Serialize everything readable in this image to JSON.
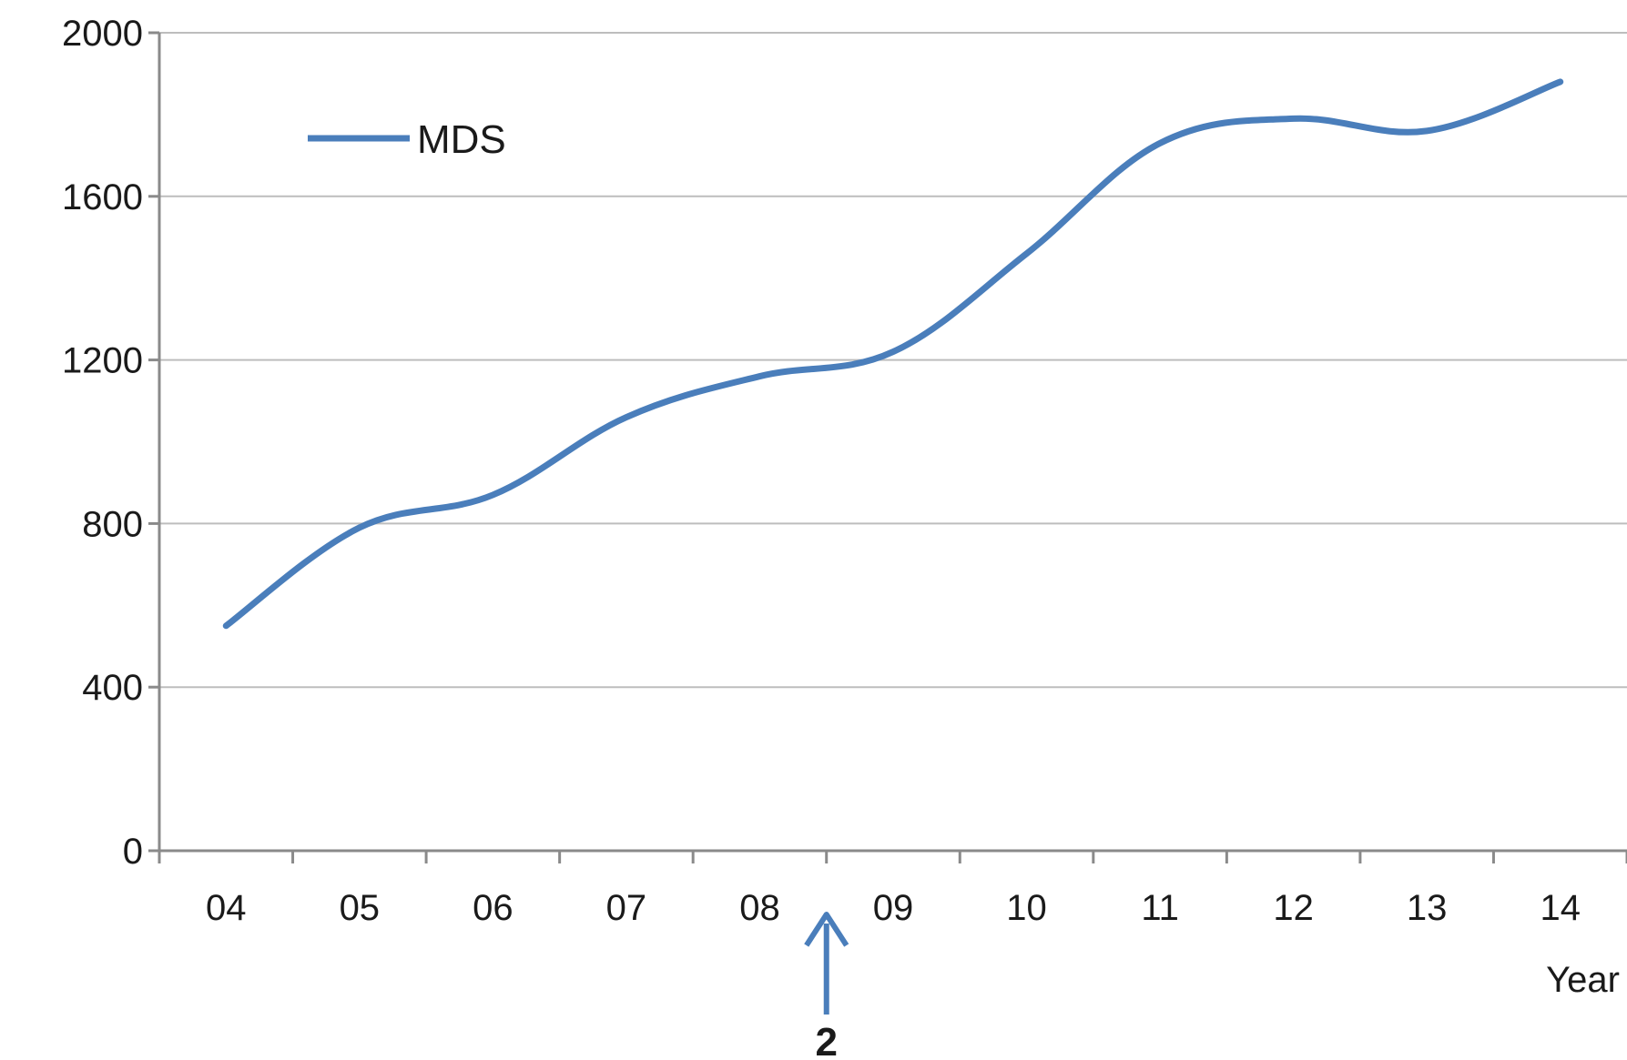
{
  "chart_data": {
    "type": "line",
    "title": "",
    "xlabel": "Year",
    "ylabel": "",
    "categories": [
      "04",
      "05",
      "06",
      "07",
      "08",
      "09",
      "10",
      "11",
      "12",
      "13",
      "14"
    ],
    "series": [
      {
        "name": "MDS",
        "color": "#4a7ebb",
        "values": [
          550,
          790,
          870,
          1060,
          1160,
          1220,
          1460,
          1730,
          1790,
          1760,
          1880
        ]
      }
    ],
    "ylim": [
      0,
      2000
    ],
    "yticks": [
      0,
      400,
      800,
      1200,
      1600,
      2000
    ],
    "grid": true,
    "legend": {
      "position": "top-left"
    },
    "smooth": true,
    "annotations": [
      {
        "label": "2",
        "x_between": [
          "08",
          "09"
        ],
        "type": "arrow-up",
        "color": "#4a7ebb"
      }
    ]
  }
}
